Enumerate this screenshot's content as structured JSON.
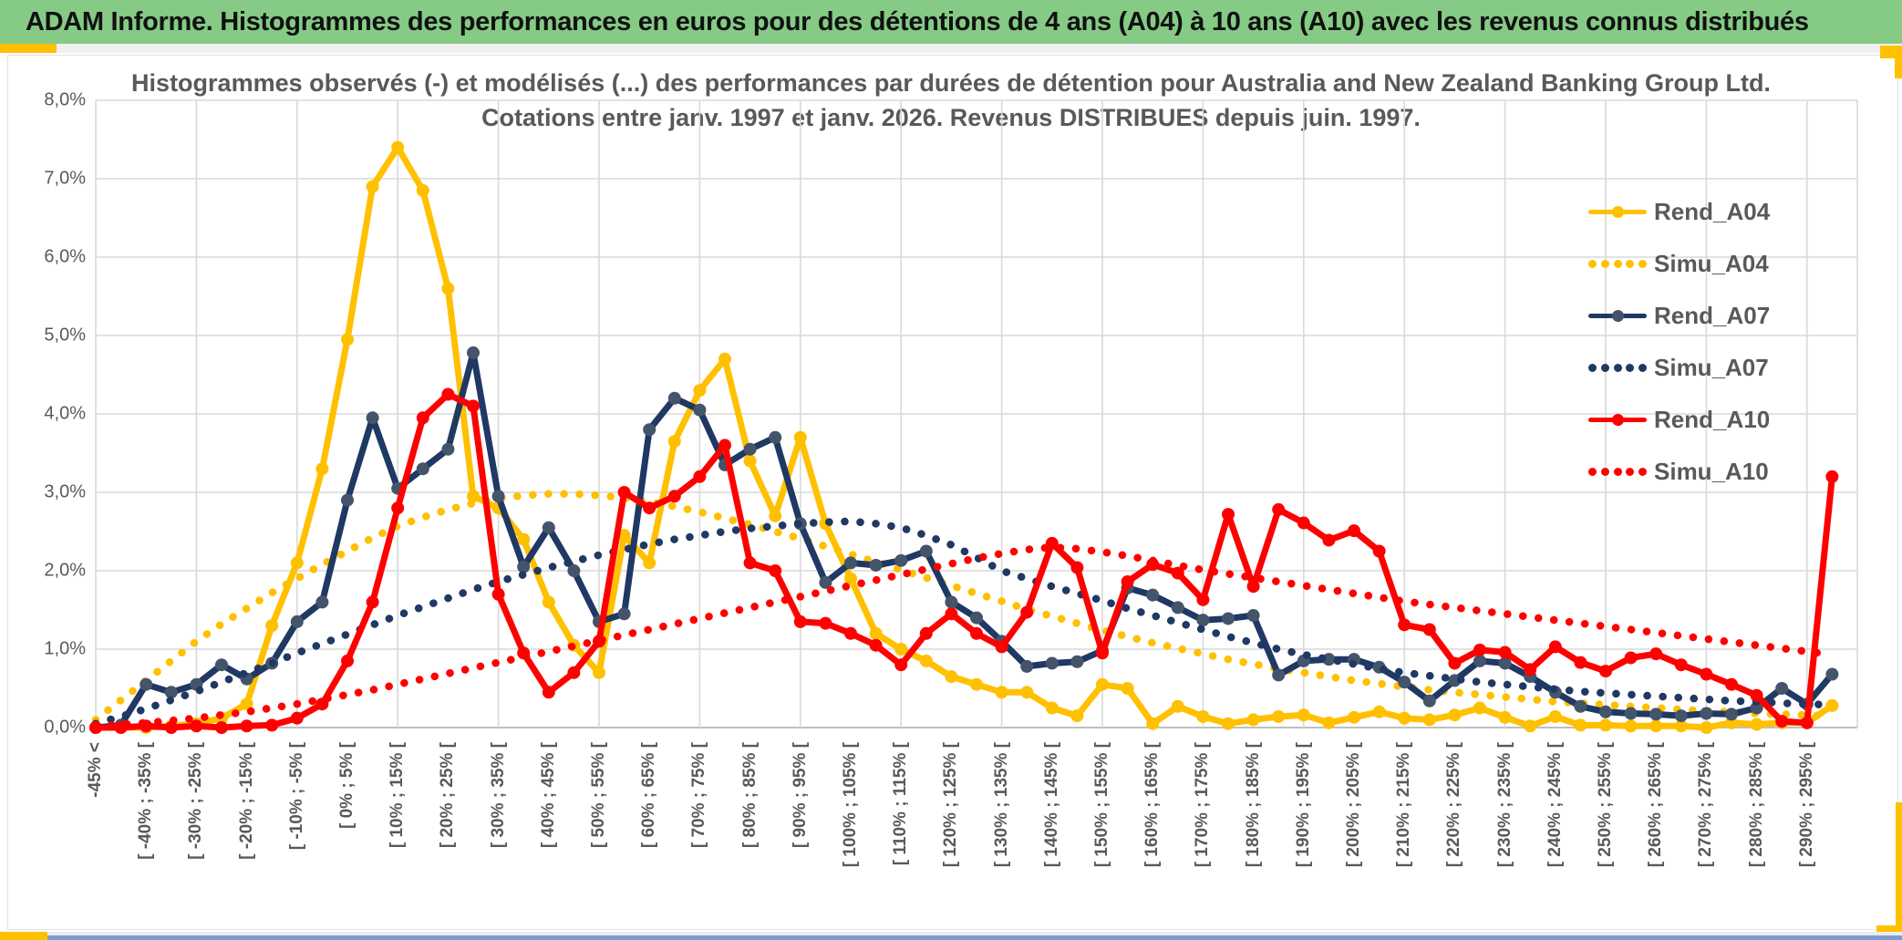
{
  "header": {
    "title": "ADAM Informe. Histogrammes des performances en euros pour des détentions de 4 ans (A04) à 10 ans (A10) avec les revenus connus distribués"
  },
  "chart": {
    "title_line1": "Histogrammes observés (-) et modélisés (...) des performances par durées de détention pour Australia and New Zealand Banking Group Ltd.",
    "title_line2": "Cotations entre janv. 1997 et janv. 2026. Revenus DISTRIBUES depuis juin. 1997."
  },
  "chart_data": {
    "type": "line",
    "title": "Histogrammes observés (-) et modélisés (...) des performances par durées de détention pour Australia and New Zealand Banking Group Ltd. Cotations entre janv. 1997 et janv. 2026. Revenus DISTRIBUES depuis juin. 1997.",
    "xlabel": "",
    "ylabel": "",
    "ylim": [
      0,
      8
    ],
    "grid": true,
    "legend_position": "inside-top-right",
    "n_bins": 70,
    "bin_width_pct": 5,
    "x_label_every_n_bins": 2,
    "x_tick_labels": [
      "-45% <",
      "[ -40% ; -35% [",
      "[ -30% ; -25% [",
      "[ -20% ; -15% [",
      "[ -10% ; -5% [",
      "[ 0% ; 5% [",
      "[ 10% ; 15% [",
      "[ 20% ; 25% [",
      "[ 30% ; 35% [",
      "[ 40% ; 45% [",
      "[ 50% ; 55% [",
      "[ 60% ; 65% [",
      "[ 70% ; 75% [",
      "[ 80% ; 85% [",
      "[ 90% ; 95% [",
      "[ 100% ; 105% [",
      "[ 110% ; 115% [",
      "[ 120% ; 125% [",
      "[ 130% ; 135% [",
      "[ 140% ; 145% [",
      "[ 150% ; 155% [",
      "[ 160% ; 165% [",
      "[ 170% ; 175% [",
      "[ 180% ; 185% [",
      "[ 190% ; 195% [",
      "[ 200% ; 205% [",
      "[ 210% ; 215% [",
      "[ 220% ; 225% [",
      "[ 230% ; 235% [",
      "[ 240% ; 245% [",
      "[ 250% ; 255% [",
      "[ 260% ; 265% [",
      "[ 270% ; 275% [",
      "[ 280% ; 285% [",
      "[ 290% ; 295% ["
    ],
    "y_tick_labels": [
      "0,0%",
      "1,0%",
      "2,0%",
      "3,0%",
      "4,0%",
      "5,0%",
      "6,0%",
      "7,0%",
      "8,0%"
    ],
    "series": [
      {
        "name": "Rend_A04",
        "style": "solid",
        "color": "#FFC000",
        "marker_color": "#FFC000",
        "values": [
          0,
          0,
          0,
          0.02,
          0.05,
          0.12,
          0.3,
          1.3,
          2.1,
          3.3,
          4.95,
          6.9,
          7.4,
          6.85,
          5.6,
          2.95,
          2.8,
          2.4,
          1.6,
          1.05,
          0.7,
          2.45,
          2.1,
          3.65,
          4.3,
          4.7,
          3.4,
          2.7,
          3.7,
          2.6,
          1.9,
          1.2,
          1.0,
          0.85,
          0.65,
          0.55,
          0.45,
          0.45,
          0.25,
          0.15,
          0.55,
          0.5,
          0.05,
          0.27,
          0.14,
          0.05,
          0.1,
          0.14,
          0.16,
          0.06,
          0.13,
          0.2,
          0.12,
          0.1,
          0.16,
          0.25,
          0.13,
          0.02,
          0.14,
          0.03,
          0.03,
          0.02,
          0.02,
          0.02,
          0.0,
          0.06,
          0.04,
          0.06,
          0.06,
          0.28
        ]
      },
      {
        "name": "Simu_A04",
        "style": "dotted",
        "color": "#FFC000",
        "values": [
          0.1,
          0.35,
          0.6,
          0.85,
          1.1,
          1.32,
          1.52,
          1.72,
          1.9,
          2.08,
          2.25,
          2.42,
          2.57,
          2.68,
          2.78,
          2.86,
          2.92,
          2.96,
          2.98,
          2.98,
          2.96,
          2.93,
          2.88,
          2.82,
          2.75,
          2.67,
          2.59,
          2.5,
          2.41,
          2.31,
          2.21,
          2.11,
          2.01,
          1.91,
          1.81,
          1.71,
          1.61,
          1.51,
          1.42,
          1.33,
          1.24,
          1.16,
          1.08,
          1.01,
          0.94,
          0.87,
          0.81,
          0.75,
          0.7,
          0.65,
          0.6,
          0.56,
          0.52,
          0.48,
          0.45,
          0.42,
          0.39,
          0.36,
          0.33,
          0.31,
          0.29,
          0.27,
          0.25,
          0.23,
          0.21,
          0.2,
          0.18,
          0.17,
          0.16,
          0.15
        ]
      },
      {
        "name": "Rend_A07",
        "style": "solid",
        "color": "#1F3864",
        "marker_color": "#44546A",
        "values": [
          0,
          0.03,
          0.55,
          0.45,
          0.55,
          0.8,
          0.62,
          0.82,
          1.35,
          1.6,
          2.9,
          3.95,
          3.05,
          3.3,
          3.55,
          4.78,
          2.95,
          2.05,
          2.55,
          2.0,
          1.35,
          1.45,
          3.8,
          4.2,
          4.05,
          3.35,
          3.55,
          3.7,
          2.6,
          1.85,
          2.1,
          2.07,
          2.13,
          2.25,
          1.6,
          1.4,
          1.1,
          0.78,
          0.82,
          0.84,
          0.98,
          1.78,
          1.69,
          1.53,
          1.37,
          1.39,
          1.43,
          0.67,
          0.85,
          0.87,
          0.87,
          0.77,
          0.58,
          0.34,
          0.6,
          0.85,
          0.82,
          0.65,
          0.45,
          0.27,
          0.2,
          0.18,
          0.17,
          0.15,
          0.18,
          0.17,
          0.25,
          0.5,
          0.3,
          0.68
        ]
      },
      {
        "name": "Simu_A07",
        "style": "dotted",
        "color": "#1F3864",
        "values": [
          0.05,
          0.14,
          0.24,
          0.35,
          0.46,
          0.58,
          0.7,
          0.82,
          0.95,
          1.07,
          1.19,
          1.31,
          1.43,
          1.54,
          1.65,
          1.76,
          1.86,
          1.95,
          2.04,
          2.12,
          2.2,
          2.27,
          2.34,
          2.4,
          2.45,
          2.5,
          2.54,
          2.57,
          2.6,
          2.62,
          2.63,
          2.6,
          2.55,
          2.45,
          2.33,
          2.17,
          2.0,
          1.9,
          1.8,
          1.71,
          1.62,
          1.52,
          1.43,
          1.34,
          1.25,
          1.16,
          1.08,
          1.0,
          0.93,
          0.87,
          0.81,
          0.75,
          0.7,
          0.66,
          0.62,
          0.58,
          0.55,
          0.52,
          0.49,
          0.46,
          0.44,
          0.42,
          0.4,
          0.38,
          0.36,
          0.34,
          0.33,
          0.31,
          0.3,
          0.29
        ]
      },
      {
        "name": "Rend_A10",
        "style": "solid",
        "color": "#FF0000",
        "marker_color": "#FF0000",
        "values": [
          0,
          0,
          0.02,
          0,
          0.02,
          0,
          0.02,
          0.03,
          0.12,
          0.3,
          0.85,
          1.6,
          2.8,
          3.95,
          4.25,
          4.1,
          1.7,
          0.95,
          0.45,
          0.7,
          1.1,
          3.0,
          2.8,
          2.95,
          3.2,
          3.6,
          2.1,
          2.0,
          1.35,
          1.33,
          1.2,
          1.05,
          0.8,
          1.2,
          1.45,
          1.2,
          1.03,
          1.47,
          2.35,
          2.04,
          0.95,
          1.86,
          2.08,
          1.97,
          1.63,
          2.72,
          1.8,
          2.78,
          2.61,
          2.39,
          2.51,
          2.25,
          1.31,
          1.25,
          0.82,
          0.99,
          0.96,
          0.74,
          1.03,
          0.83,
          0.72,
          0.89,
          0.94,
          0.8,
          0.68,
          0.55,
          0.41,
          0.08,
          0.06,
          3.2
        ]
      },
      {
        "name": "Simu_A10",
        "style": "dotted",
        "color": "#FF0000",
        "values": [
          0.02,
          0.04,
          0.06,
          0.09,
          0.12,
          0.16,
          0.2,
          0.25,
          0.3,
          0.36,
          0.42,
          0.48,
          0.55,
          0.62,
          0.69,
          0.76,
          0.83,
          0.9,
          0.97,
          1.04,
          1.11,
          1.18,
          1.25,
          1.32,
          1.39,
          1.46,
          1.53,
          1.6,
          1.67,
          1.74,
          1.81,
          1.88,
          1.95,
          2.02,
          2.09,
          2.16,
          2.22,
          2.27,
          2.3,
          2.28,
          2.24,
          2.19,
          2.13,
          2.07,
          2.01,
          1.96,
          1.91,
          1.86,
          1.81,
          1.76,
          1.71,
          1.66,
          1.61,
          1.57,
          1.53,
          1.49,
          1.45,
          1.41,
          1.37,
          1.33,
          1.29,
          1.25,
          1.21,
          1.17,
          1.13,
          1.09,
          1.05,
          1.01,
          0.97,
          0.93
        ]
      }
    ]
  },
  "colors": {
    "header_green": "#85CA85",
    "accent_gold": "#FFC000",
    "navy": "#1F3864",
    "navy_marker": "#44546A",
    "red": "#FF0000",
    "text_gray": "#595959",
    "gridline": "#D9D9D9",
    "axis_line": "#BFBFBF",
    "bottom_blue": "#7D9BD2"
  }
}
